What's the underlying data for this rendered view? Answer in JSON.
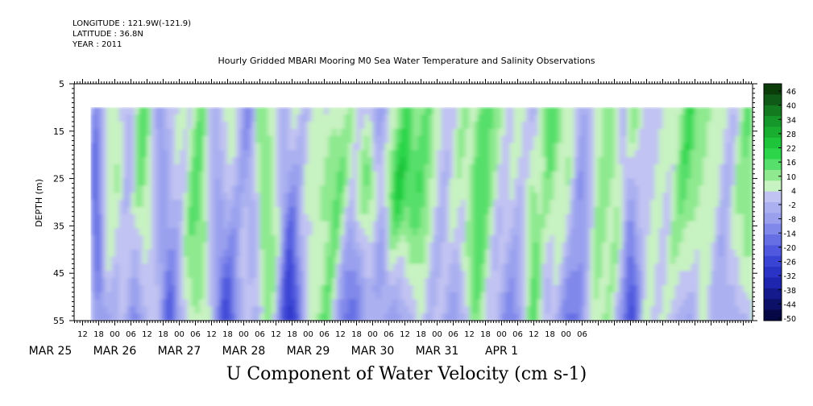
{
  "header": {
    "longitude": "LONGITUDE : 121.9W(-121.9)",
    "latitude": "LATITUDE : 36.8N",
    "year": "YEAR : 2011"
  },
  "chart_data": {
    "type": "heatmap",
    "title": "Hourly Gridded MBARI Mooring M0 Sea Water Temperature and Salinity Observations",
    "xlabel": "U Component of Water Velocity (cm s-1)",
    "ylabel": "DEPTH (m)",
    "y_ticks": [
      5,
      15,
      25,
      35,
      45,
      55
    ],
    "ylim": [
      55,
      5
    ],
    "data_depth_range": [
      10,
      55
    ],
    "x_hour_ticks": [
      "12",
      "18",
      "00",
      "06",
      "12",
      "18",
      "00",
      "06",
      "12",
      "18",
      "00",
      "06",
      "12",
      "18",
      "00",
      "06",
      "12",
      "18",
      "00",
      "06",
      "12",
      "18",
      "00",
      "06",
      "12",
      "18",
      "00",
      "06",
      "12",
      "18",
      "00",
      "06"
    ],
    "x_date_labels": [
      "MAR 25",
      "MAR 26",
      "MAR 27",
      "MAR 28",
      "MAR 29",
      "MAR 30",
      "MAR 31",
      "APR 1"
    ],
    "colorbar_labels": [
      "46",
      "40",
      "34",
      "28",
      "22",
      "16",
      "10",
      "4",
      "-2",
      "-8",
      "-14",
      "-20",
      "-26",
      "-32",
      "-38",
      "-44",
      "-50"
    ],
    "colorbar_range": [
      -50,
      50
    ]
  }
}
